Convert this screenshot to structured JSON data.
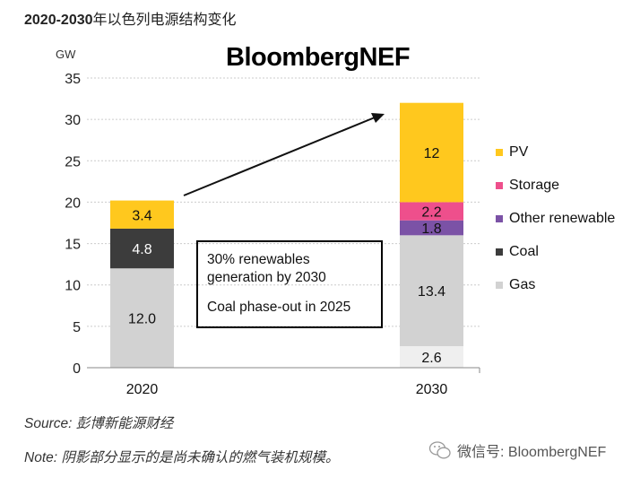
{
  "header": {
    "title_bold": "2020-2030",
    "title_rest": "年以色列电源结构变化",
    "brand": "BloombergNEF"
  },
  "chart_data": {
    "type": "bar",
    "stacked": true,
    "ylabel": "GW",
    "ylim": [
      0,
      35
    ],
    "yticks": [
      0,
      5,
      10,
      15,
      20,
      25,
      30,
      35
    ],
    "grid": true,
    "categories": [
      "2020",
      "2030"
    ],
    "series": [
      {
        "name": "Gas",
        "color": "#D2D2D2",
        "values": [
          12.0,
          13.4
        ],
        "labels": [
          "12.0",
          "13.4"
        ]
      },
      {
        "name": "Coal",
        "color": "#3C3C3C",
        "values": [
          4.8,
          0
        ],
        "labels": [
          "4.8",
          ""
        ]
      },
      {
        "name": "Other renewable",
        "color": "#7B52A6",
        "values": [
          0,
          1.8
        ],
        "labels": [
          "",
          "1.8"
        ]
      },
      {
        "name": "Storage",
        "color": "#EE4F8C",
        "values": [
          0,
          2.2
        ],
        "labels": [
          "",
          "2.2"
        ]
      },
      {
        "name": "PV",
        "color": "#FFC81E",
        "values": [
          3.4,
          12
        ],
        "labels": [
          "3.4",
          "12"
        ]
      }
    ],
    "unconfirmed_gas": {
      "color": "#EFEFEF",
      "values": [
        0,
        2.6
      ],
      "labels": [
        "",
        "2.6"
      ]
    },
    "legend": [
      "PV",
      "Storage",
      "Other renewable",
      "Coal",
      "Gas"
    ],
    "legend_placement": "right",
    "annotation": {
      "line1": "30% renewables",
      "line2": "generation by 2030",
      "line3": "Coal phase-out in 2025"
    }
  },
  "footer": {
    "source": "Source: 彭博新能源财经",
    "note": "Note: 阴影部分显示的是尚未确认的燃气装机规模。",
    "watermark": "微信号: BloombergNEF",
    "watermark_icon": "wechat-icon"
  }
}
